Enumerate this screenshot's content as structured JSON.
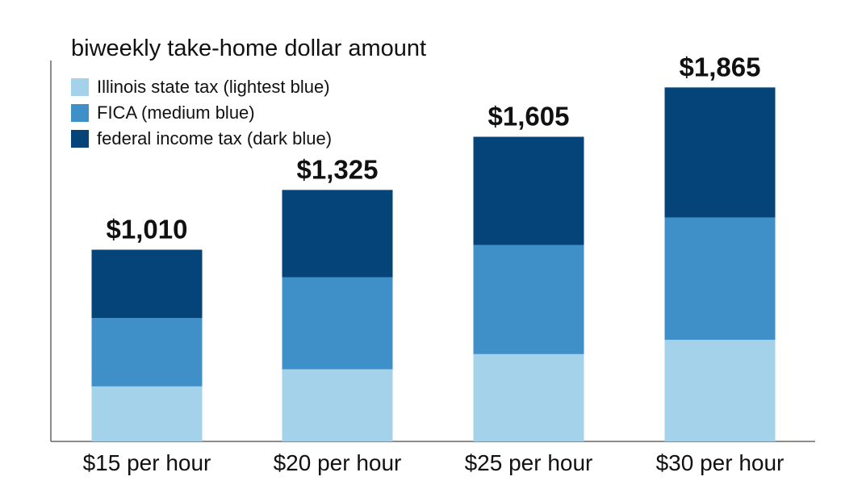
{
  "chart_data": {
    "type": "bar",
    "stacked": true,
    "title": "biweekly take-home dollar amount",
    "categories": [
      "$15 per hour",
      "$20 per hour",
      "$25 per hour",
      "$30 per hour"
    ],
    "totals": [
      1010,
      1325,
      1605,
      1865
    ],
    "total_labels": [
      "$1,010",
      "$1,325",
      "$1,605",
      "$1,865"
    ],
    "series": [
      {
        "name": "Illinois state tax (lightest blue)",
        "color": "#a4d2eb",
        "values": [
          290,
          380,
          460,
          535
        ]
      },
      {
        "name": "FICA (medium blue)",
        "color": "#3f90c8",
        "values": [
          360,
          485,
          575,
          645
        ]
      },
      {
        "name": "federal income tax (dark blue)",
        "color": "#044478",
        "values": [
          360,
          460,
          570,
          685
        ]
      }
    ],
    "ylim": [
      0,
      2000
    ],
    "grid": false,
    "legend_position": "top-left"
  }
}
